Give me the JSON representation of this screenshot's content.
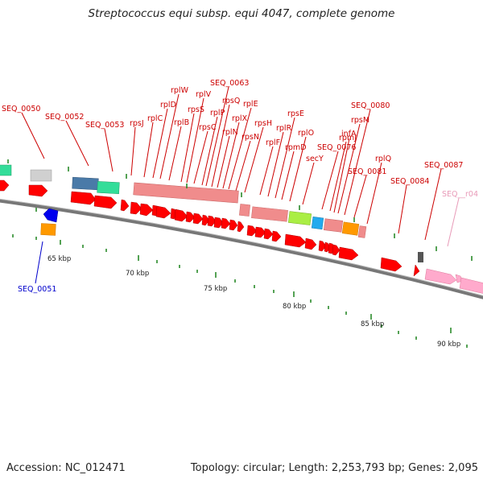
{
  "header": {
    "title": "Streptococcus equi subsp. equi 4047, complete genome"
  },
  "footer": {
    "accession": "Accession: NC_012471",
    "summary": "Topology: circular; Length: 2,253,793 bp; Genes: 2,095"
  },
  "colors": {
    "backbone": "#707070",
    "label_red": "#cc0000",
    "label_blue": "#0000cc",
    "label_pink": "#e89ab8",
    "tick": "#2a8a2a",
    "gene_red": "#ff0000",
    "ribosomal_pink": "#f08c8c",
    "steel_blue": "#4a7aa8",
    "teal": "#33dd99",
    "lime": "#aaee44",
    "sky": "#22aaee",
    "orange": "#ff9900",
    "gray": "#cccccc",
    "dark_gray": "#555555",
    "blue": "#0000ee",
    "light_pink": "#ffaacc"
  },
  "scale_labels": [
    "65 kbp",
    "70 kbp",
    "75 kbp",
    "80 kbp",
    "85 kbp",
    "90 kbp"
  ],
  "gene_labels": [
    "SEQ_0050",
    "SEQ_0051",
    "SEQ_0052",
    "SEQ_0053",
    "rpsJ",
    "rplC",
    "rplD",
    "rplW",
    "rplB",
    "rpsS",
    "rplV",
    "rpsC",
    "rplP",
    "SEQ_0063",
    "rpsQ",
    "rplN",
    "rplX",
    "rplE",
    "rpsN",
    "rpsH",
    "rplF",
    "rplR",
    "rpsE",
    "rpmD",
    "rplO",
    "secY",
    "SEQ_0076",
    "rpmJ",
    "infA",
    "rpsM",
    "SEQ_0080",
    "SEQ_0081",
    "rplQ",
    "SEQ_0084",
    "SEQ_0087",
    "SEQ__r04"
  ]
}
